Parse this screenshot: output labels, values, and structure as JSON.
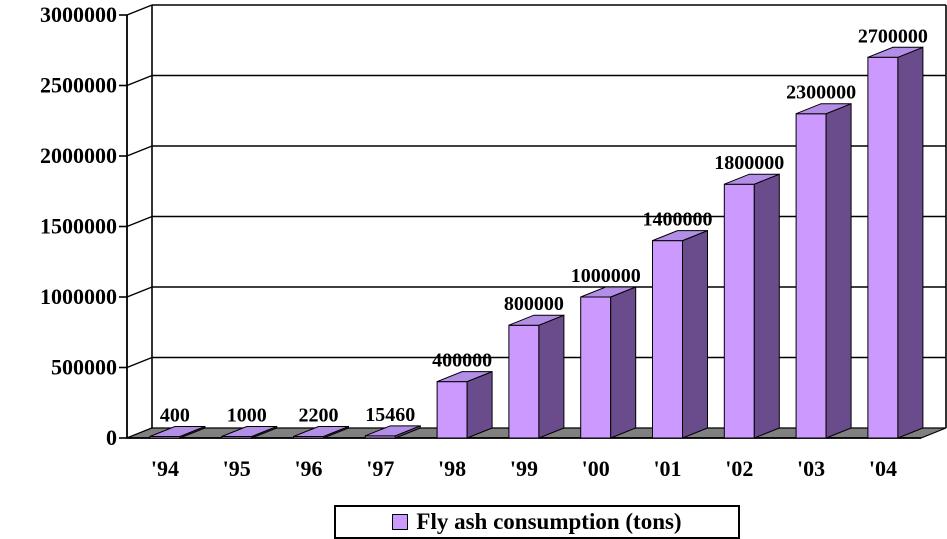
{
  "chart_data": {
    "type": "bar",
    "categories": [
      "'94",
      "'95",
      "'96",
      "'97",
      "'98",
      "'99",
      "'00",
      "'01",
      "'02",
      "'03",
      "'04"
    ],
    "series": [
      {
        "name": "Fly ash consumption (tons)",
        "values": [
          400,
          1000,
          2200,
          15460,
          400000,
          800000,
          1000000,
          1400000,
          1800000,
          2300000,
          2700000
        ],
        "data_labels": [
          "400",
          "1000",
          "2200",
          "15460",
          "400000",
          "800000",
          "1000000",
          "1400000",
          "1800000",
          "2300000",
          "2700000"
        ]
      }
    ],
    "y_ticks": [
      "0",
      "500000",
      "1000000",
      "1500000",
      "2000000",
      "2500000",
      "3000000"
    ],
    "ylim": [
      0,
      3000000
    ],
    "grid": true,
    "legend_position": "bottom",
    "style": "3d-column",
    "colors": {
      "front": "#cc99ff",
      "side": "#6a4c8c",
      "top": "#b38ee6",
      "floor": "#808080",
      "grid": "#000000"
    }
  },
  "legend": {
    "label": "Fly ash consumption (tons)"
  }
}
